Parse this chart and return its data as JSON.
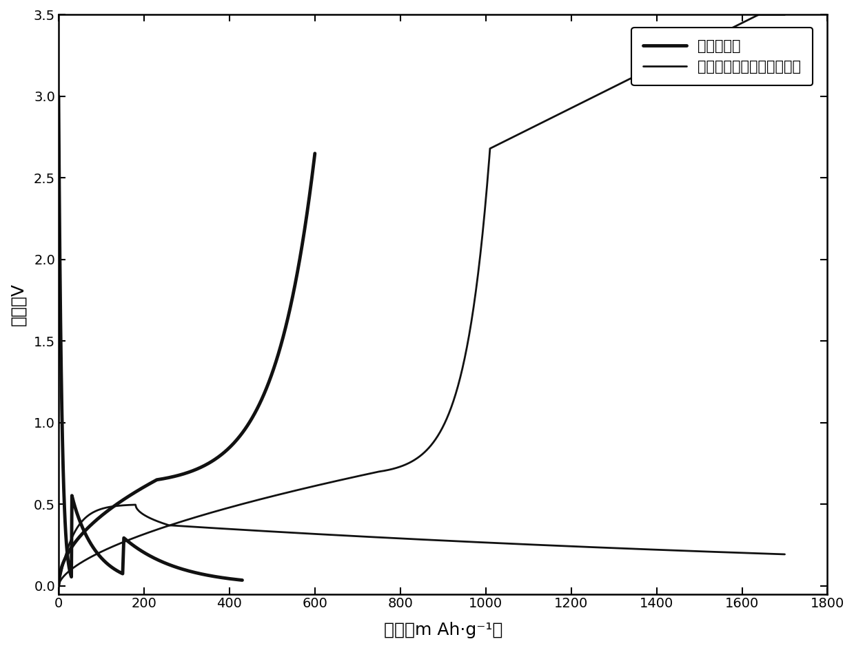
{
  "xlabel": "容量／m Ah·g⁻¹）",
  "ylabel": "电压／V",
  "xlim": [
    0,
    1800
  ],
  "ylim": [
    -0.05,
    3.5
  ],
  "xticks": [
    0,
    200,
    400,
    600,
    800,
    1000,
    1200,
    1400,
    1600,
    1800
  ],
  "yticks": [
    0.0,
    0.5,
    1.0,
    1.5,
    2.0,
    2.5,
    3.0,
    3.5
  ],
  "legend1": "氧化锡材料",
  "legend2": "膨胀石墨／氧化锡徤合材料",
  "bg_color": "#ffffff",
  "line_color": "#111111",
  "figure_color": "#ffffff",
  "lw_thick": 3.5,
  "lw_thin": 2.0
}
